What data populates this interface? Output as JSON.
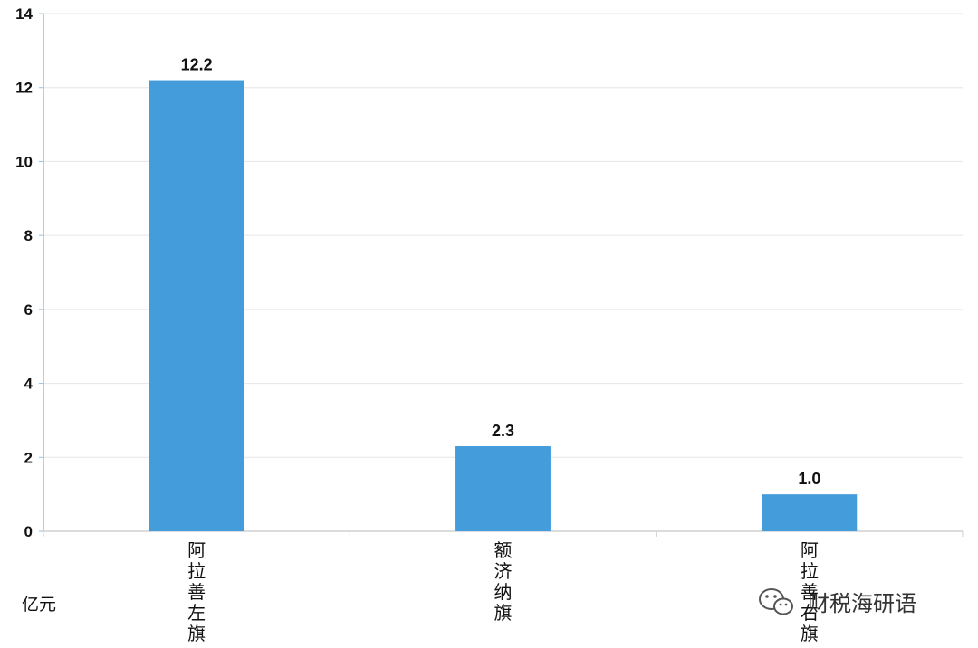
{
  "chart_data": {
    "type": "bar",
    "categories": [
      "阿拉善左旗",
      "额济纳旗",
      "阿拉善右旗"
    ],
    "values": [
      12.2,
      2.3,
      1.0
    ],
    "value_labels": [
      "12.2",
      "2.3",
      "1.0"
    ],
    "ylim": [
      0,
      14
    ],
    "yticks": [
      0,
      2,
      4,
      6,
      8,
      10,
      12,
      14
    ],
    "unit_label": "亿元",
    "grid": true,
    "bar_color": "#449cdb",
    "axis_color": "#8fc3e6",
    "grid_color": "#e6e6e6"
  },
  "watermark": {
    "text": "财税海研语",
    "icon": "wechat-icon"
  }
}
